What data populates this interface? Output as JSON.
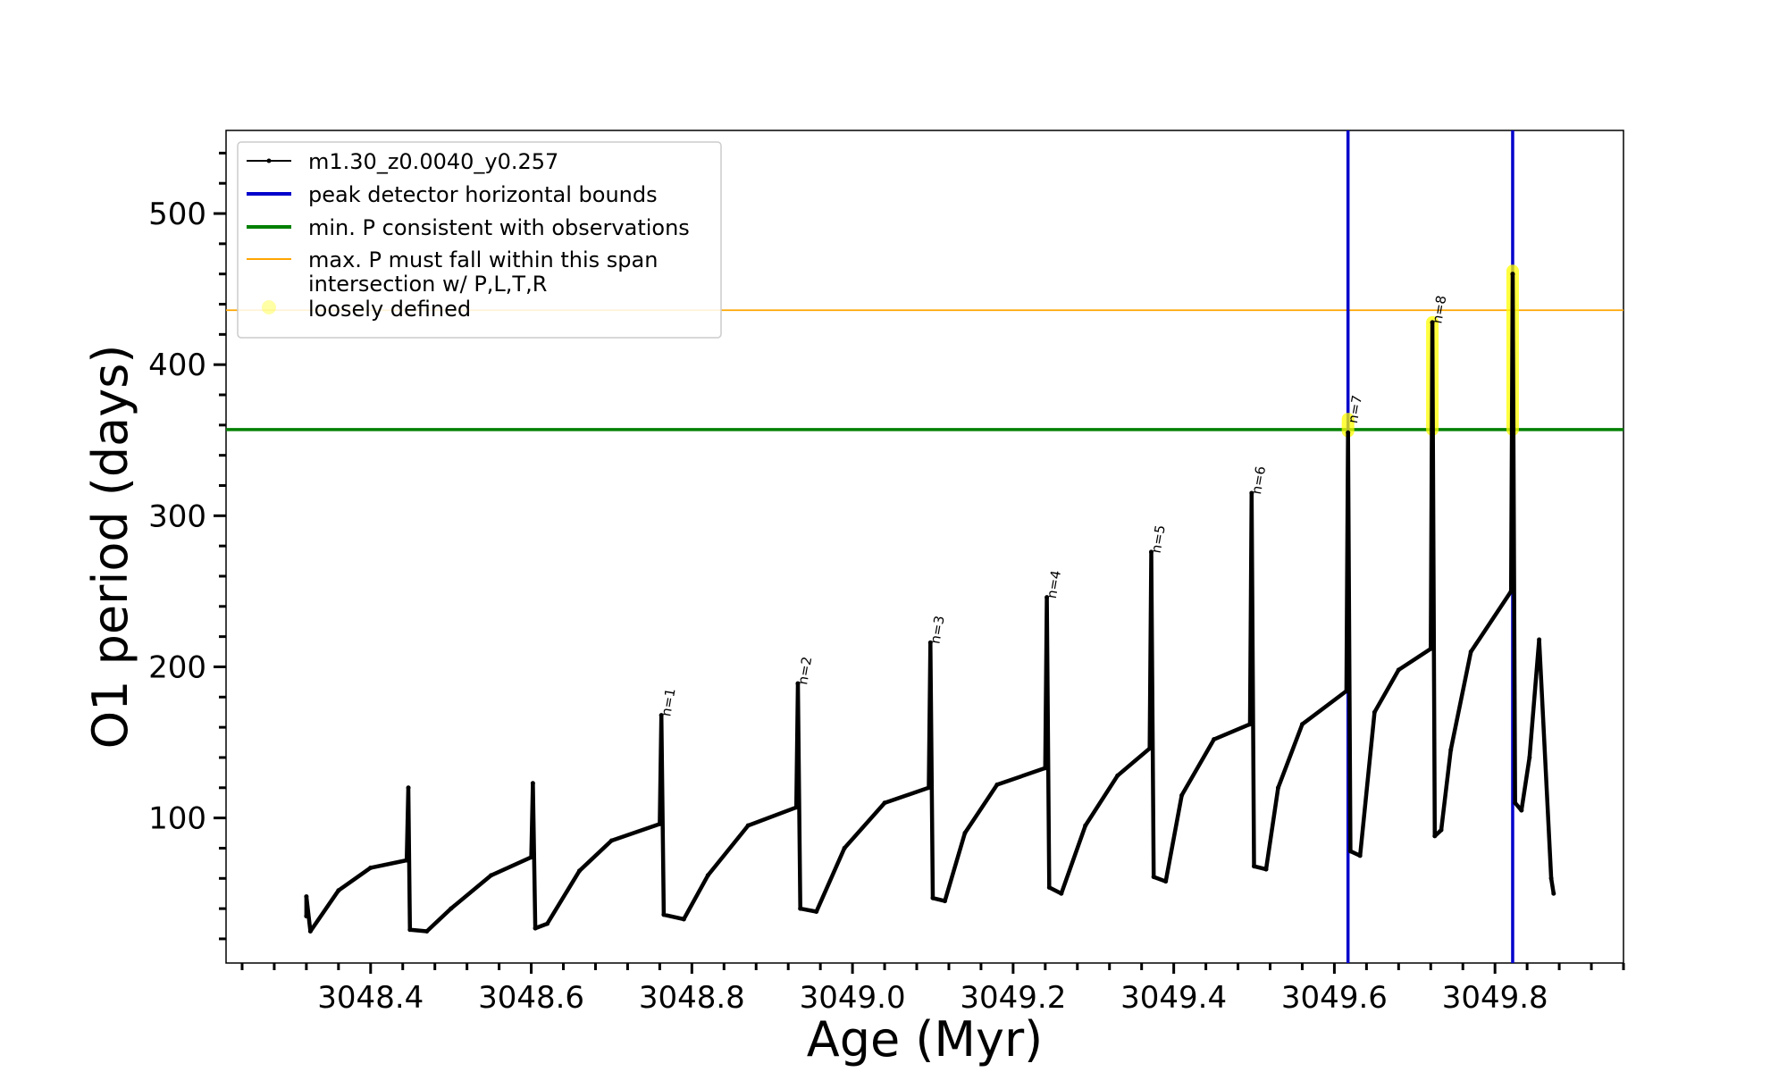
{
  "chart_data": {
    "type": "line",
    "title": "",
    "xlabel": "Age (Myr)",
    "ylabel": "O1 period (days)",
    "xlim": [
      3048.22,
      3049.96
    ],
    "ylim": [
      4,
      555
    ],
    "x_ticks": [
      3048.4,
      3048.6,
      3048.8,
      3049.0,
      3049.2,
      3049.4,
      3049.6,
      3049.8
    ],
    "x_tick_labels": [
      "3048.4",
      "3048.6",
      "3048.8",
      "3049.0",
      "3049.2",
      "3049.4",
      "3049.6",
      "3049.8"
    ],
    "y_ticks": [
      100,
      200,
      300,
      400,
      500
    ],
    "y_tick_labels": [
      "100",
      "200",
      "300",
      "400",
      "500"
    ],
    "grid": false,
    "legend_position": "top-left",
    "legend": [
      {
        "label": "m1.30_z0.0040_y0.257",
        "style": "line-marker",
        "color": "#000000"
      },
      {
        "label": "peak detector horizontal bounds",
        "style": "line",
        "color": "#0000cc"
      },
      {
        "label": "min. P consistent with observations",
        "style": "line",
        "color": "#008000"
      },
      {
        "label": "max. P must fall within this span",
        "style": "thin-line",
        "color": "#ffa500"
      },
      {
        "label": "intersection w/ P,L,T,R\nloosely defined",
        "style": "marker",
        "color": "#ffff00"
      }
    ],
    "series": [
      {
        "name": "m1.30_z0.0040_y0.257",
        "color": "#000000",
        "x": [
          3048.32,
          3048.32,
          3048.325,
          3048.36,
          3048.4,
          3048.445,
          3048.447,
          3048.449,
          3048.47,
          3048.5,
          3048.55,
          3048.6,
          3048.602,
          3048.605,
          3048.62,
          3048.66,
          3048.7,
          3048.76,
          3048.762,
          3048.765,
          3048.79,
          3048.82,
          3048.87,
          3048.93,
          3048.932,
          3048.935,
          3048.955,
          3048.99,
          3049.04,
          3049.095,
          3049.097,
          3049.1,
          3049.115,
          3049.14,
          3049.18,
          3049.24,
          3049.242,
          3049.245,
          3049.26,
          3049.29,
          3049.33,
          3049.37,
          3049.372,
          3049.375,
          3049.39,
          3049.41,
          3049.45,
          3049.495,
          3049.497,
          3049.5,
          3049.515,
          3049.53,
          3049.56,
          3049.615,
          3049.617,
          3049.62,
          3049.632,
          3049.65,
          3049.68,
          3049.72,
          3049.722,
          3049.725,
          3049.733,
          3049.745,
          3049.77,
          3049.82,
          3049.822,
          3049.825,
          3049.833,
          3049.843,
          3049.855,
          3049.87,
          3049.873
        ],
        "y": [
          35,
          48,
          25,
          52,
          67,
          72,
          120,
          26,
          25,
          40,
          62,
          74,
          123,
          27,
          30,
          65,
          85,
          96,
          168,
          36,
          33,
          62,
          95,
          107,
          189,
          40,
          38,
          80,
          110,
          120,
          216,
          47,
          45,
          90,
          122,
          133,
          246,
          54,
          50,
          95,
          128,
          146,
          276,
          61,
          58,
          115,
          152,
          162,
          315,
          68,
          66,
          120,
          162,
          184,
          355,
          78,
          75,
          170,
          198,
          212,
          428,
          88,
          92,
          145,
          210,
          250,
          460,
          110,
          105,
          140,
          218,
          60,
          50
        ]
      }
    ],
    "vertical_lines": [
      {
        "label": "peak detector horizontal bounds",
        "x": 3049.617,
        "color": "#0000cc"
      },
      {
        "label": "peak detector horizontal bounds",
        "x": 3049.822,
        "color": "#0000cc"
      }
    ],
    "horizontal_lines": [
      {
        "label": "min. P consistent with observations",
        "y": 357,
        "color": "#008000"
      },
      {
        "label": "max. P must fall within this span",
        "y": 436,
        "color": "#ffa500"
      }
    ],
    "highlight_segments": [
      {
        "x": 3049.617,
        "y_low": 356,
        "y_high": 364
      },
      {
        "x": 3049.722,
        "y_low": 357,
        "y_high": 428
      },
      {
        "x": 3049.822,
        "y_low": 357,
        "y_high": 462
      }
    ],
    "peak_annotations": [
      {
        "text": "n=1",
        "x": 3048.762,
        "y": 168
      },
      {
        "text": "n=2",
        "x": 3048.932,
        "y": 189
      },
      {
        "text": "n=3",
        "x": 3049.097,
        "y": 216
      },
      {
        "text": "n=4",
        "x": 3049.242,
        "y": 246
      },
      {
        "text": "n=5",
        "x": 3049.372,
        "y": 276
      },
      {
        "text": "n=6",
        "x": 3049.497,
        "y": 315
      },
      {
        "text": "n=7",
        "x": 3049.617,
        "y": 362
      },
      {
        "text": "n=8",
        "x": 3049.722,
        "y": 428
      }
    ]
  }
}
